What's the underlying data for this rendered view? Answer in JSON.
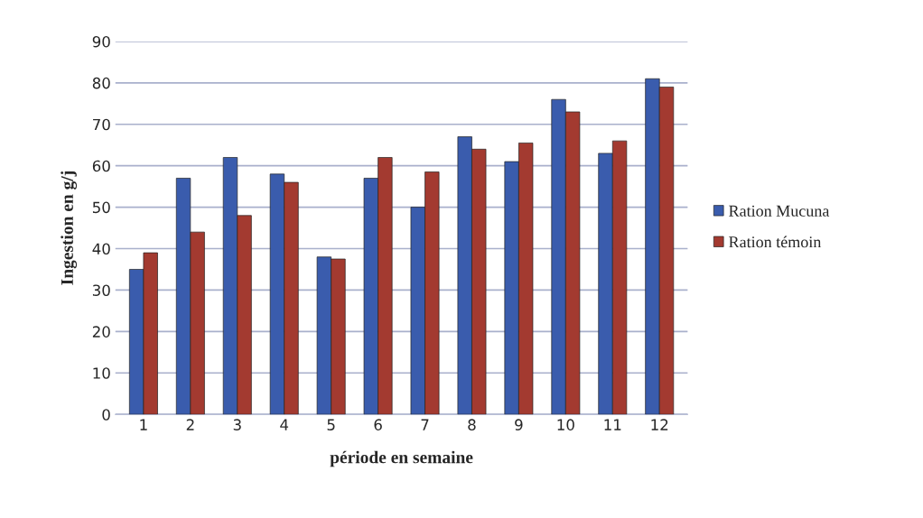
{
  "chart_data": {
    "type": "bar",
    "xlabel": "période en semaine",
    "ylabel": "Ingestion en g/j",
    "categories": [
      "1",
      "2",
      "3",
      "4",
      "5",
      "6",
      "7",
      "8",
      "9",
      "10",
      "11",
      "12"
    ],
    "series": [
      {
        "name": "Ration Mucuna",
        "color": "#3a5cad",
        "values": [
          35,
          57,
          62,
          58,
          38,
          57,
          50,
          67,
          61,
          76,
          63,
          81
        ]
      },
      {
        "name": "Ration témoin",
        "color": "#a33a30",
        "values": [
          39,
          44,
          48,
          56,
          37.5,
          62,
          58.5,
          64,
          65.5,
          73,
          66,
          79
        ]
      }
    ],
    "ylim": [
      0,
      90
    ],
    "yticks": [
      0,
      10,
      20,
      30,
      40,
      50,
      60,
      70,
      80,
      90
    ],
    "grid": "y",
    "legend": "right"
  }
}
